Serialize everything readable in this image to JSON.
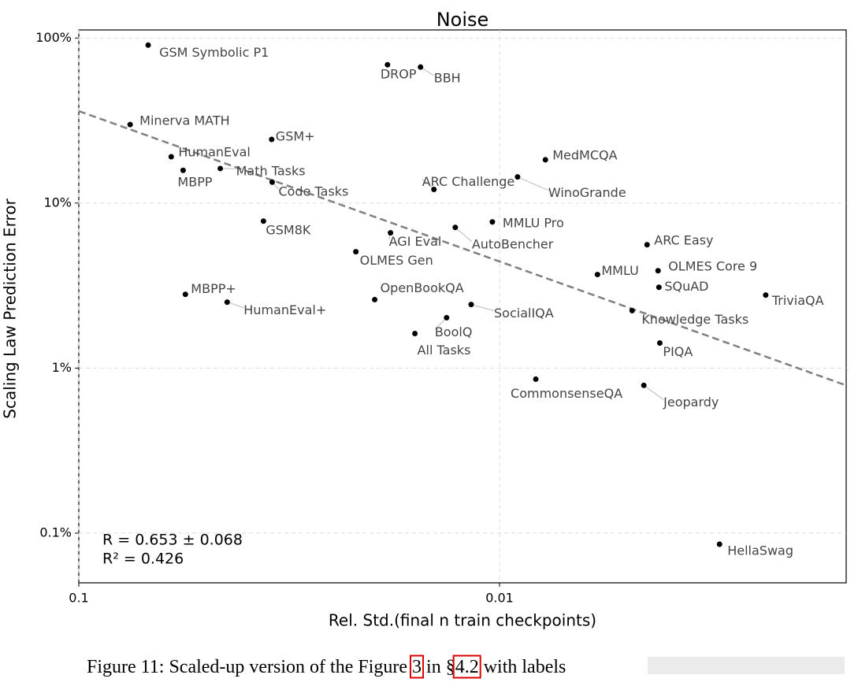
{
  "chart_data": {
    "type": "scatter",
    "title": "Noise",
    "xlabel": "Rel. Std.(final n train checkpoints)",
    "ylabel": "Scaling Law Prediction Error",
    "xscale": "log",
    "yscale": "log",
    "x_inverted": true,
    "grid": true,
    "xlim": [
      0.1,
      0.0015
    ],
    "ylim": [
      0.05,
      112
    ],
    "xticks": [
      0.1,
      0.01
    ],
    "yticks": [
      {
        "value": 100,
        "label": "100%"
      },
      {
        "value": 10,
        "label": "10%"
      },
      {
        "value": 1,
        "label": "1%"
      },
      {
        "value": 0.1,
        "label": "0.1%"
      }
    ],
    "color": "#000000",
    "labels": [
      "GSM Symbolic P1",
      "DROP",
      "BBH",
      "Minerva MATH",
      "GSM+",
      "HumanEval",
      "MedMCQA",
      "MBPP",
      "Math Tasks",
      "Code Tasks",
      "WinoGrande",
      "ARC Challenge",
      "GSM8K",
      "MMLU Pro",
      "AutoBencher",
      "AGI Eval",
      "ARC Easy",
      "OLMES Gen",
      "OLMES Core 9",
      "MMLU",
      "SQuAD",
      "MBPP+",
      "TriviaQA",
      "OpenBookQA",
      "HumanEval+",
      "SocialIQA",
      "Knowledge Tasks",
      "BoolQ",
      "All Tasks",
      "PIQA",
      "CommonsenseQA",
      "Jeopardy",
      "HellaSwag"
    ],
    "x": [
      0.0684,
      0.01846,
      0.01541,
      0.0755,
      0.0348,
      0.0603,
      0.00778,
      0.0565,
      0.0461,
      0.0347,
      0.00906,
      0.01432,
      0.0364,
      0.0104,
      0.01274,
      0.01816,
      0.00446,
      0.02195,
      0.0042,
      0.00585,
      0.00418,
      0.0558,
      0.00233,
      0.0198,
      0.0444,
      0.01168,
      0.00484,
      0.01336,
      0.01589,
      0.00416,
      0.0082,
      0.00454,
      0.003
    ],
    "values": [
      90.6,
      68.9,
      66.7,
      29.9,
      24.3,
      19.1,
      18.3,
      15.8,
      16.2,
      13.4,
      14.4,
      12.1,
      7.77,
      7.69,
      7.12,
      6.6,
      5.59,
      5.07,
      3.89,
      3.69,
      3.09,
      2.8,
      2.77,
      2.6,
      2.51,
      2.43,
      2.23,
      2.02,
      1.62,
      1.42,
      0.857,
      0.786,
      0.0857
    ],
    "trendline": {
      "x": [
        0.1,
        0.0015
      ],
      "values": [
        36.1,
        0.786
      ],
      "color": "#808080"
    },
    "annotations": [
      "R = 0.653 ± 0.068",
      "R² = 0.426"
    ]
  },
  "caption": {
    "prefix": "Figure 11: Scaled-up version of the Figure ",
    "ref1": "3",
    "middle": " in §",
    "ref2": "4.2",
    "suffix": " with labels"
  }
}
